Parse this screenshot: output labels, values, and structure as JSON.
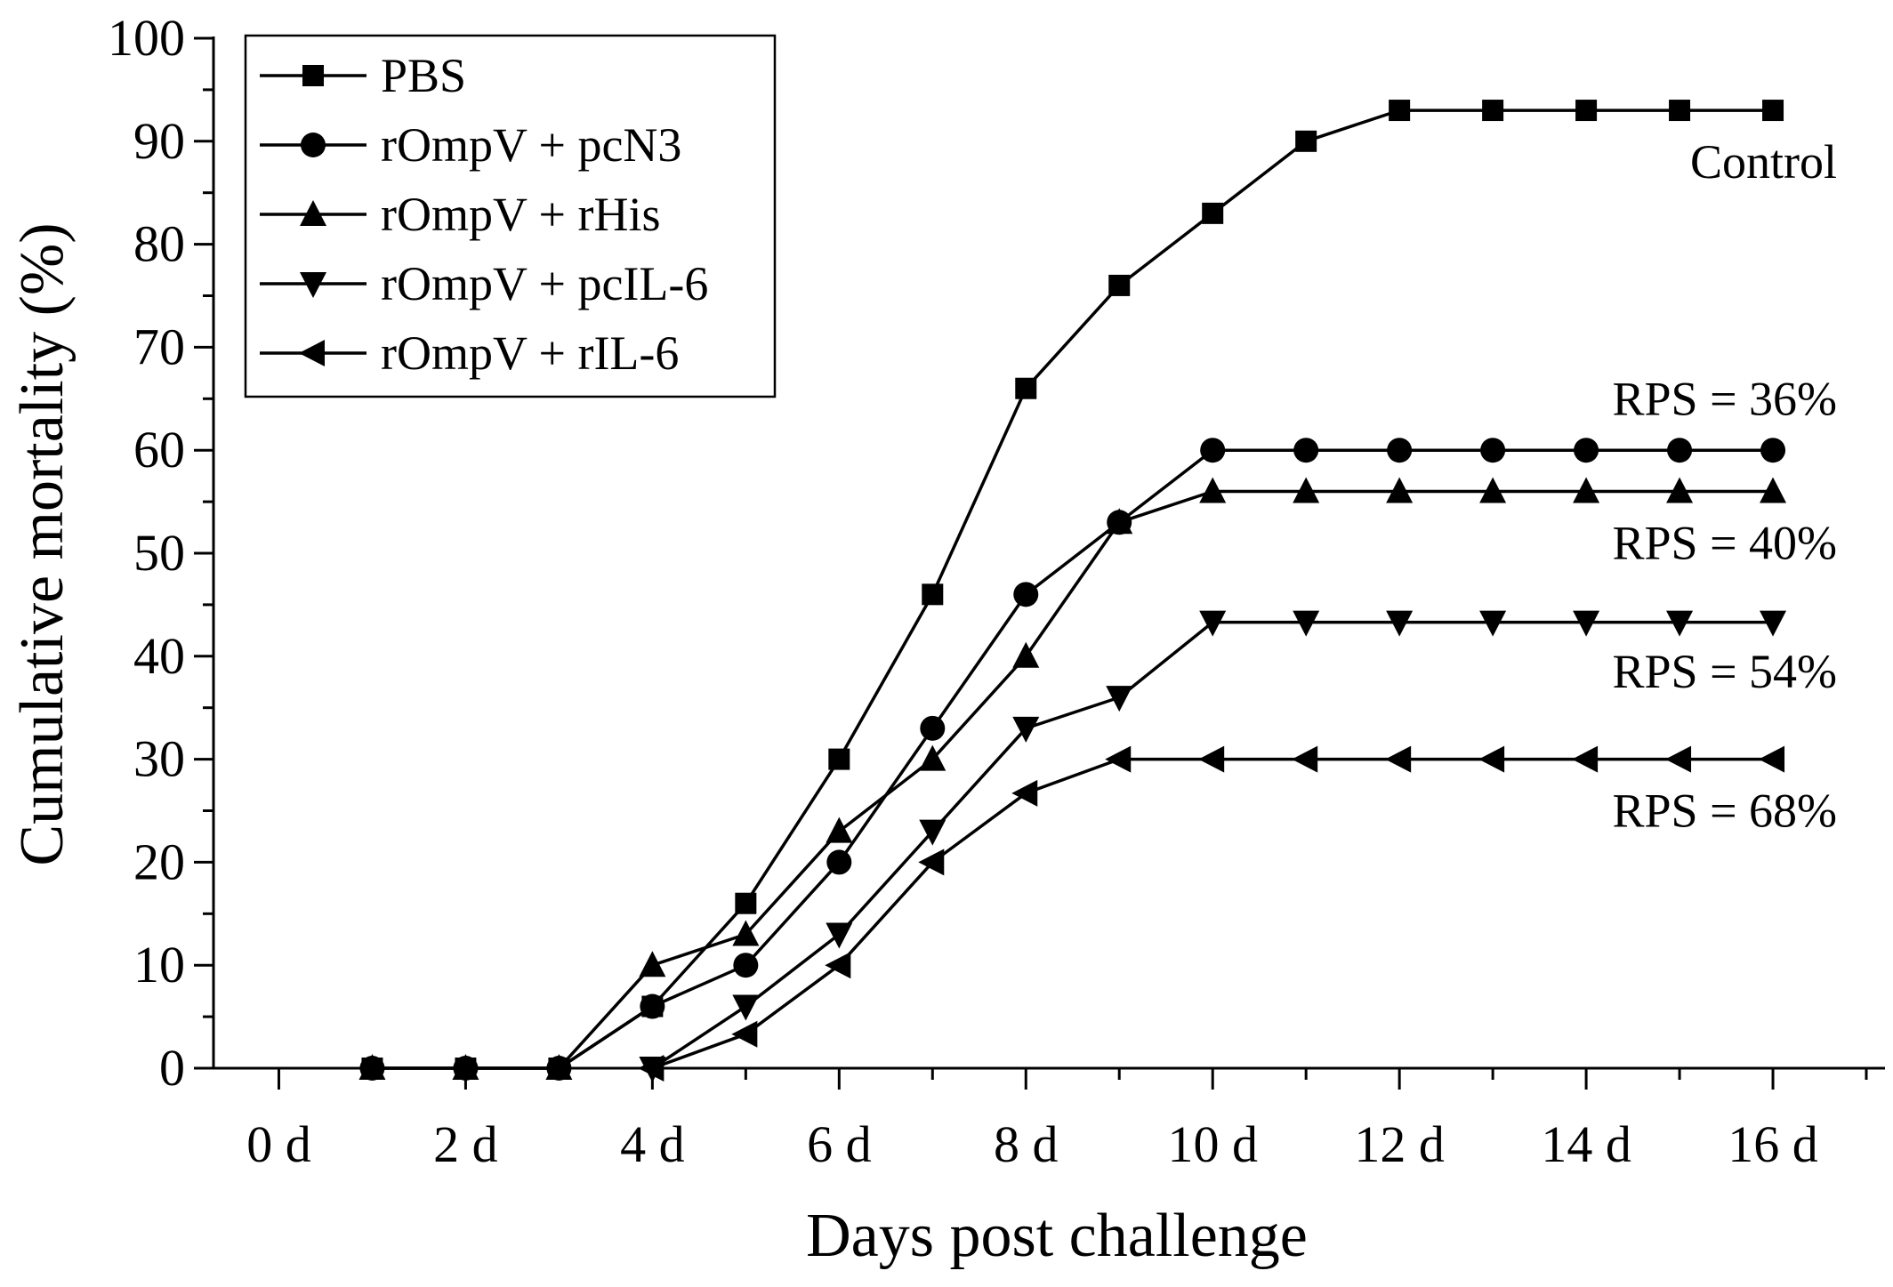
{
  "chart_data": {
    "type": "line",
    "title": "",
    "xlabel": "Days post challenge",
    "ylabel": "Cumulative mortality (%)",
    "xlim": [
      -0.7,
      17.2
    ],
    "ylim": [
      0,
      100
    ],
    "x_ticks": [
      0,
      2,
      4,
      6,
      8,
      10,
      12,
      14,
      16
    ],
    "x_tick_labels": [
      "0 d",
      "2 d",
      "4 d",
      "6 d",
      "8 d",
      "10 d",
      "12 d",
      "14 d",
      "16 d"
    ],
    "x_minor_ticks": [
      1,
      3,
      5,
      7,
      9,
      11,
      13,
      15,
      17
    ],
    "y_ticks": [
      0,
      10,
      20,
      30,
      40,
      50,
      60,
      70,
      80,
      90,
      100
    ],
    "y_tick_labels": [
      "0",
      "10",
      "20",
      "30",
      "40",
      "50",
      "60",
      "70",
      "80",
      "90",
      "100"
    ],
    "grid": false,
    "legend_position": "top-left",
    "series": [
      {
        "name": "PBS",
        "marker": "square",
        "x": [
          1,
          2,
          3,
          4,
          5,
          6,
          7,
          8,
          9,
          10,
          11,
          12,
          13,
          14,
          15,
          16
        ],
        "values": [
          0,
          0,
          0,
          6,
          16,
          30,
          46,
          66,
          76,
          83,
          90,
          93,
          93,
          93,
          93,
          93
        ]
      },
      {
        "name": "rOmpV + pcN3",
        "marker": "circle",
        "x": [
          1,
          2,
          3,
          4,
          5,
          6,
          7,
          8,
          9,
          10,
          11,
          12,
          13,
          14,
          15,
          16
        ],
        "values": [
          0,
          0,
          0,
          6,
          10,
          20,
          33,
          46,
          53,
          60,
          60,
          60,
          60,
          60,
          60,
          60
        ]
      },
      {
        "name": "rOmpV + rHis",
        "marker": "triangle-up",
        "x": [
          1,
          2,
          3,
          4,
          5,
          6,
          7,
          8,
          9,
          10,
          11,
          12,
          13,
          14,
          15,
          16
        ],
        "values": [
          0,
          0,
          0,
          10,
          13,
          23,
          30,
          40,
          53,
          56,
          56,
          56,
          56,
          56,
          56,
          56
        ]
      },
      {
        "name": "rOmpV + pcIL-6",
        "marker": "triangle-down",
        "x": [
          4,
          5,
          6,
          7,
          8,
          9,
          10,
          11,
          12,
          13,
          14,
          15,
          16
        ],
        "values": [
          0,
          6,
          13,
          23,
          33,
          36,
          43.3,
          43.3,
          43.3,
          43.3,
          43.3,
          43.3,
          43.3
        ]
      },
      {
        "name": "rOmpV + rIL-6",
        "marker": "triangle-left",
        "x": [
          4,
          5,
          6,
          7,
          8,
          9,
          10,
          11,
          12,
          13,
          14,
          15,
          16
        ],
        "values": [
          0,
          3.3,
          10,
          20,
          26.7,
          30,
          30,
          30,
          30,
          30,
          30,
          30,
          30
        ]
      }
    ],
    "annotations": [
      {
        "text": "Control",
        "x": 16,
        "y": 88
      },
      {
        "text": "RPS = 36%",
        "x": 16,
        "y": 65
      },
      {
        "text": "RPS = 40%",
        "x": 16,
        "y": 51
      },
      {
        "text": "RPS = 54%",
        "x": 16,
        "y": 38.5
      },
      {
        "text": "RPS = 68%",
        "x": 16,
        "y": 25
      }
    ]
  }
}
